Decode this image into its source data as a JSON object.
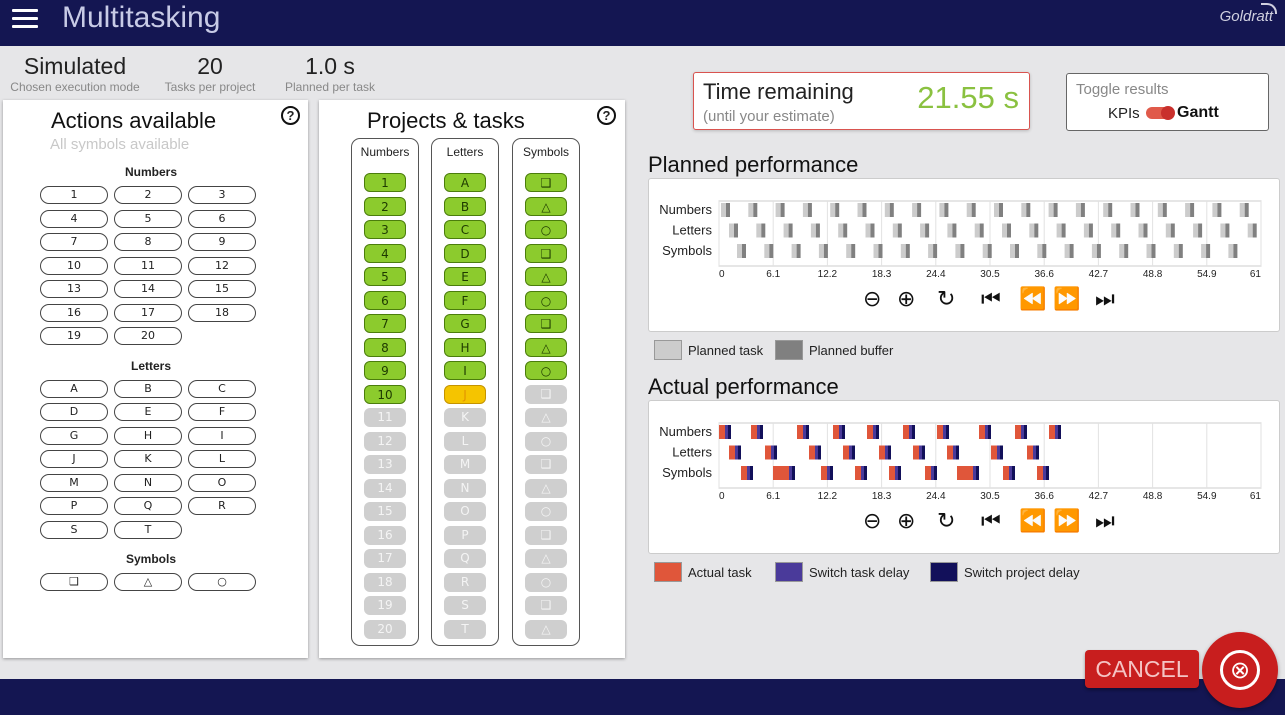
{
  "header": {
    "title": "Multitasking",
    "logo_text": "Goldratt"
  },
  "stats": [
    {
      "value": "Simulated",
      "label": "Chosen execution mode"
    },
    {
      "value": "20",
      "label": "Tasks per project"
    },
    {
      "value": "1.0 s",
      "label": "Planned per task"
    }
  ],
  "actions": {
    "title": "Actions available",
    "subtitle": "All symbols available",
    "help": "?",
    "groups": [
      {
        "title": "Numbers",
        "items": [
          "1",
          "2",
          "3",
          "4",
          "5",
          "6",
          "7",
          "8",
          "9",
          "10",
          "11",
          "12",
          "13",
          "14",
          "15",
          "16",
          "17",
          "18",
          "19",
          "20"
        ]
      },
      {
        "title": "Letters",
        "items": [
          "A",
          "B",
          "C",
          "D",
          "E",
          "F",
          "G",
          "H",
          "I",
          "J",
          "K",
          "L",
          "M",
          "N",
          "O",
          "P",
          "Q",
          "R",
          "S",
          "T"
        ]
      },
      {
        "title": "Symbols",
        "items": [
          "❑",
          "△",
          "○"
        ]
      }
    ]
  },
  "projects": {
    "title": "Projects & tasks",
    "help": "?",
    "columns": [
      {
        "header": "Numbers",
        "tasks": [
          "1",
          "2",
          "3",
          "4",
          "5",
          "6",
          "7",
          "8",
          "9",
          "10",
          "11",
          "12",
          "13",
          "14",
          "15",
          "16",
          "17",
          "18",
          "19",
          "20"
        ],
        "done": 10,
        "current": -1
      },
      {
        "header": "Letters",
        "tasks": [
          "A",
          "B",
          "C",
          "D",
          "E",
          "F",
          "G",
          "H",
          "I",
          "J",
          "K",
          "L",
          "M",
          "N",
          "O",
          "P",
          "Q",
          "R",
          "S",
          "T"
        ],
        "done": 9,
        "current": 9
      },
      {
        "header": "Symbols",
        "tasks": [
          "❑",
          "△",
          "○",
          "❑",
          "△",
          "○",
          "❑",
          "△",
          "○",
          "❑",
          "△",
          "○",
          "❑",
          "△",
          "○",
          "❑",
          "△",
          "○",
          "❑",
          "△"
        ],
        "done": 9,
        "current": -1
      }
    ]
  },
  "time": {
    "label": "Time remaining",
    "sub": "(until your estimate)",
    "value": "21.55 s"
  },
  "toggle": {
    "title": "Toggle results",
    "left": "KPIs",
    "right": "Gantt"
  },
  "planned": {
    "title": "Planned performance",
    "rows": [
      "Numbers",
      "Letters",
      "Symbols"
    ],
    "ticks": [
      "0",
      "6.1",
      "12.2",
      "18.3",
      "24.4",
      "30.5",
      "36.6",
      "42.7",
      "48.8",
      "54.9",
      "61"
    ],
    "legend": [
      {
        "label": "Planned task",
        "color": "#cccccc"
      },
      {
        "label": "Planned buffer",
        "color": "#808080"
      }
    ]
  },
  "actual": {
    "title": "Actual performance",
    "rows": [
      "Numbers",
      "Letters",
      "Symbols"
    ],
    "ticks": [
      "0",
      "6.1",
      "12.2",
      "18.3",
      "24.4",
      "30.5",
      "36.6",
      "42.7",
      "48.8",
      "54.9",
      "61"
    ],
    "legend": [
      {
        "label": "Actual task",
        "color": "#e0563a"
      },
      {
        "label": "Switch task delay",
        "color": "#4a3a9a"
      },
      {
        "label": "Switch project delay",
        "color": "#12105a"
      }
    ]
  },
  "controls": [
    "zoom-out-icon",
    "zoom-in-icon",
    "reset-icon",
    "skip-to-start-icon",
    "rewind-icon",
    "fast-forward-icon",
    "skip-to-end-icon"
  ],
  "cancel": {
    "label": "CANCEL",
    "icon": "⊗"
  }
}
